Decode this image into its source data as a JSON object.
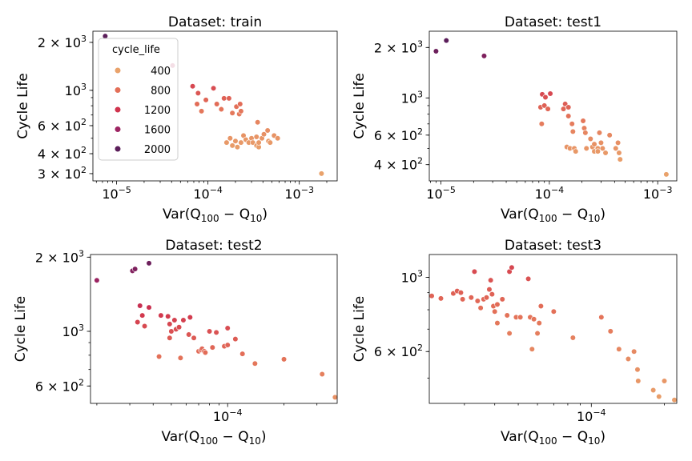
{
  "legend": {
    "title": "cycle_life",
    "entries": [
      {
        "label": "400",
        "value": 400
      },
      {
        "label": "800",
        "value": 800
      },
      {
        "label": "1200",
        "value": 1200
      },
      {
        "label": "1600",
        "value": 1600
      },
      {
        "label": "2000",
        "value": 2000
      }
    ]
  },
  "colors": {
    "scale": [
      "#e9a26b",
      "#e36f58",
      "#d0334d",
      "#9d2462",
      "#5b1e5a"
    ],
    "scale_min": 400,
    "scale_max": 2000
  },
  "chart_data": [
    {
      "type": "scatter",
      "title": "Dataset: train",
      "xlabel": "Var(Q100 − Q10)",
      "ylabel": "Cycle Life",
      "xscale": "log",
      "yscale": "log",
      "xlim": [
        5.5e-06,
        0.0026
      ],
      "ylim": [
        270,
        2350
      ],
      "xticks": [
        {
          "v": 1e-05,
          "m": "10",
          "e": "−5"
        },
        {
          "v": 0.0001,
          "m": "10",
          "e": "−4"
        },
        {
          "v": 0.001,
          "m": "10",
          "e": "−3"
        }
      ],
      "yticks": [
        {
          "v": 300,
          "m": "3 × 10",
          "e": "2"
        },
        {
          "v": 400,
          "m": "4 × 10",
          "e": "2"
        },
        {
          "v": 600,
          "m": "6 × 10",
          "e": "2"
        },
        {
          "v": 1000,
          "m": "10",
          "e": "3"
        },
        {
          "v": 2000,
          "m": "2 × 10",
          "e": "3"
        }
      ],
      "legend": "top-left",
      "points": [
        [
          7.5e-06,
          2190
        ],
        [
          4.1e-05,
          1430
        ],
        [
          6.8e-05,
          1060
        ],
        [
          7.8e-05,
          960
        ],
        [
          7.6e-05,
          820
        ],
        [
          8.5e-05,
          740
        ],
        [
          9.5e-05,
          870
        ],
        [
          0.000115,
          1030
        ],
        [
          0.000125,
          820
        ],
        [
          0.00014,
          760
        ],
        [
          0.00015,
          890
        ],
        [
          0.00017,
          890
        ],
        [
          0.000185,
          720
        ],
        [
          0.000205,
          790
        ],
        [
          0.00022,
          710
        ],
        [
          0.00023,
          740
        ],
        [
          0.000225,
          820
        ],
        [
          0.00016,
          470
        ],
        [
          0.000175,
          500
        ],
        [
          0.000185,
          450
        ],
        [
          0.0002,
          480
        ],
        [
          0.00021,
          440
        ],
        [
          0.00023,
          470
        ],
        [
          0.000245,
          520
        ],
        [
          0.00026,
          490
        ],
        [
          0.00028,
          470
        ],
        [
          0.0003,
          500
        ],
        [
          0.00031,
          470
        ],
        [
          0.00034,
          510
        ],
        [
          0.00034,
          450
        ],
        [
          0.00036,
          440
        ],
        [
          0.00035,
          630
        ],
        [
          0.00036,
          470
        ],
        [
          0.00039,
          500
        ],
        [
          0.00041,
          530
        ],
        [
          0.00045,
          560
        ],
        [
          0.00046,
          480
        ],
        [
          0.00048,
          470
        ],
        [
          0.00053,
          520
        ],
        [
          0.00058,
          500
        ],
        [
          0.00175,
          300
        ]
      ]
    },
    {
      "type": "scatter",
      "title": "Dataset: test1",
      "xlabel": "Var(Q100 − Q10)",
      "ylabel": "Cycle Life",
      "xscale": "log",
      "yscale": "log",
      "xlim": [
        7.8e-06,
        0.0015
      ],
      "ylim": [
        320,
        2500
      ],
      "xticks": [
        {
          "v": 1e-05,
          "m": "10",
          "e": "−5"
        },
        {
          "v": 0.0001,
          "m": "10",
          "e": "−4"
        },
        {
          "v": 0.001,
          "m": "10",
          "e": "−3"
        }
      ],
      "yticks": [
        {
          "v": 400,
          "m": "4 × 10",
          "e": "2"
        },
        {
          "v": 600,
          "m": "6 × 10",
          "e": "2"
        },
        {
          "v": 1000,
          "m": "10",
          "e": "3"
        },
        {
          "v": 2000,
          "m": "2 × 10",
          "e": "3"
        }
      ],
      "legend": "",
      "points": [
        [
          9e-06,
          1900
        ],
        [
          1.12e-05,
          2200
        ],
        [
          2.5e-05,
          1780
        ],
        [
          8.3e-05,
          880
        ],
        [
          8.5e-05,
          700
        ],
        [
          8.6e-05,
          1050
        ],
        [
          9e-05,
          900
        ],
        [
          9.2e-05,
          1010
        ],
        [
          9.7e-05,
          860
        ],
        [
          0.000102,
          1060
        ],
        [
          0.000135,
          860
        ],
        [
          0.00014,
          920
        ],
        [
          0.00015,
          880
        ],
        [
          0.00015,
          780
        ],
        [
          0.000162,
          700
        ],
        [
          0.000165,
          630
        ],
        [
          0.000145,
          510
        ],
        [
          0.000155,
          500
        ],
        [
          0.00017,
          500
        ],
        [
          0.000175,
          480
        ],
        [
          0.000205,
          730
        ],
        [
          0.00021,
          660
        ],
        [
          0.000215,
          620
        ],
        [
          0.00022,
          500
        ],
        [
          0.00024,
          570
        ],
        [
          0.00025,
          510
        ],
        [
          0.00026,
          480
        ],
        [
          0.00026,
          530
        ],
        [
          0.00028,
          500
        ],
        [
          0.00028,
          480
        ],
        [
          0.00029,
          620
        ],
        [
          0.0003,
          540
        ],
        [
          0.00031,
          500
        ],
        [
          0.00033,
          470
        ],
        [
          0.00036,
          600
        ],
        [
          0.00041,
          500
        ],
        [
          0.00043,
          540
        ],
        [
          0.00044,
          470
        ],
        [
          0.00045,
          430
        ],
        [
          0.0012,
          350
        ]
      ]
    },
    {
      "type": "scatter",
      "title": "Dataset: test2",
      "xlabel": "Var(Q100 − Q10)",
      "ylabel": "Cycle Life",
      "xscale": "log",
      "yscale": "log",
      "xlim": [
        1.85e-05,
        0.000385
      ],
      "ylim": [
        510,
        2050
      ],
      "xticks": [
        {
          "v": 0.0001,
          "m": "10",
          "e": "−4"
        }
      ],
      "yticks": [
        {
          "v": 600,
          "m": "6 × 10",
          "e": "2"
        },
        {
          "v": 1000,
          "m": "10",
          "e": "3"
        },
        {
          "v": 2000,
          "m": "2 × 10",
          "e": "3"
        }
      ],
      "legend": "",
      "points": [
        [
          2e-05,
          1610
        ],
        [
          3.1e-05,
          1760
        ],
        [
          3.2e-05,
          1790
        ],
        [
          3.8e-05,
          1890
        ],
        [
          3.3e-05,
          1090
        ],
        [
          3.4e-05,
          1270
        ],
        [
          3.5e-05,
          1160
        ],
        [
          3.6e-05,
          1050
        ],
        [
          3.8e-05,
          1250
        ],
        [
          4.3e-05,
          790
        ],
        [
          4.4e-05,
          1160
        ],
        [
          4.8e-05,
          1150
        ],
        [
          4.9e-05,
          940
        ],
        [
          4.9e-05,
          1070
        ],
        [
          5e-05,
          1000
        ],
        [
          5.2e-05,
          1110
        ],
        [
          5.3e-05,
          1020
        ],
        [
          5.5e-05,
          1040
        ],
        [
          5.6e-05,
          780
        ],
        [
          5.8e-05,
          1110
        ],
        [
          6.2e-05,
          970
        ],
        [
          6.3e-05,
          1140
        ],
        [
          6.6e-05,
          940
        ],
        [
          7e-05,
          830
        ],
        [
          7.2e-05,
          840
        ],
        [
          7.3e-05,
          850
        ],
        [
          7.5e-05,
          830
        ],
        [
          7.6e-05,
          820
        ],
        [
          8e-05,
          1000
        ],
        [
          8.3e-05,
          860
        ],
        [
          8.7e-05,
          990
        ],
        [
          9.6e-05,
          870
        ],
        [
          0.0001,
          1030
        ],
        [
          0.0001,
          880
        ],
        [
          0.00011,
          930
        ],
        [
          0.00012,
          810
        ],
        [
          0.00014,
          740
        ],
        [
          0.0002,
          770
        ],
        [
          0.00032,
          670
        ],
        [
          0.000375,
          540
        ]
      ]
    },
    {
      "type": "scatter",
      "title": "Dataset: test3",
      "xlabel": "Var(Q100 − Q10)",
      "ylabel": "Cycle Life",
      "xscale": "log",
      "yscale": "log",
      "xlim": [
        2.15e-05,
        0.000225
      ],
      "ylim": [
        420,
        1170
      ],
      "xticks": [
        {
          "v": 0.0001,
          "m": "10",
          "e": "−4"
        }
      ],
      "yticks": [
        {
          "v": 600,
          "m": "6 × 10",
          "e": "2"
        },
        {
          "v": 1000,
          "m": "10",
          "e": "3"
        }
      ],
      "legend": "",
      "points": [
        [
          2.2e-05,
          880
        ],
        [
          2.4e-05,
          865
        ],
        [
          2.7e-05,
          895
        ],
        [
          2.8e-05,
          910
        ],
        [
          2.9e-05,
          900
        ],
        [
          2.95e-05,
          860
        ],
        [
          3.2e-05,
          870
        ],
        [
          3.3e-05,
          1040
        ],
        [
          3.4e-05,
          850
        ],
        [
          3.5e-05,
          810
        ],
        [
          3.6e-05,
          860
        ],
        [
          3.7e-05,
          870
        ],
        [
          3.8e-05,
          920
        ],
        [
          3.85e-05,
          980
        ],
        [
          3.9e-05,
          890
        ],
        [
          3.95e-05,
          820
        ],
        [
          4e-05,
          790
        ],
        [
          4.1e-05,
          830
        ],
        [
          4.1e-05,
          730
        ],
        [
          4.3e-05,
          860
        ],
        [
          4.5e-05,
          770
        ],
        [
          4.6e-05,
          1040
        ],
        [
          4.6e-05,
          680
        ],
        [
          4.7e-05,
          1070
        ],
        [
          4.9e-05,
          760
        ],
        [
          5.1e-05,
          760
        ],
        [
          5.5e-05,
          990
        ],
        [
          5.6e-05,
          760
        ],
        [
          5.7e-05,
          610
        ],
        [
          5.8e-05,
          750
        ],
        [
          6e-05,
          680
        ],
        [
          6.1e-05,
          730
        ],
        [
          6.2e-05,
          820
        ],
        [
          7e-05,
          790
        ],
        [
          8.4e-05,
          660
        ],
        [
          0.00011,
          760
        ],
        [
          0.00012,
          690
        ],
        [
          0.00013,
          610
        ],
        [
          0.000142,
          570
        ],
        [
          0.00015,
          600
        ],
        [
          0.000155,
          530
        ],
        [
          0.000156,
          490
        ],
        [
          0.00018,
          460
        ],
        [
          0.00019,
          440
        ],
        [
          0.0002,
          490
        ],
        [
          0.00022,
          430
        ]
      ]
    }
  ]
}
